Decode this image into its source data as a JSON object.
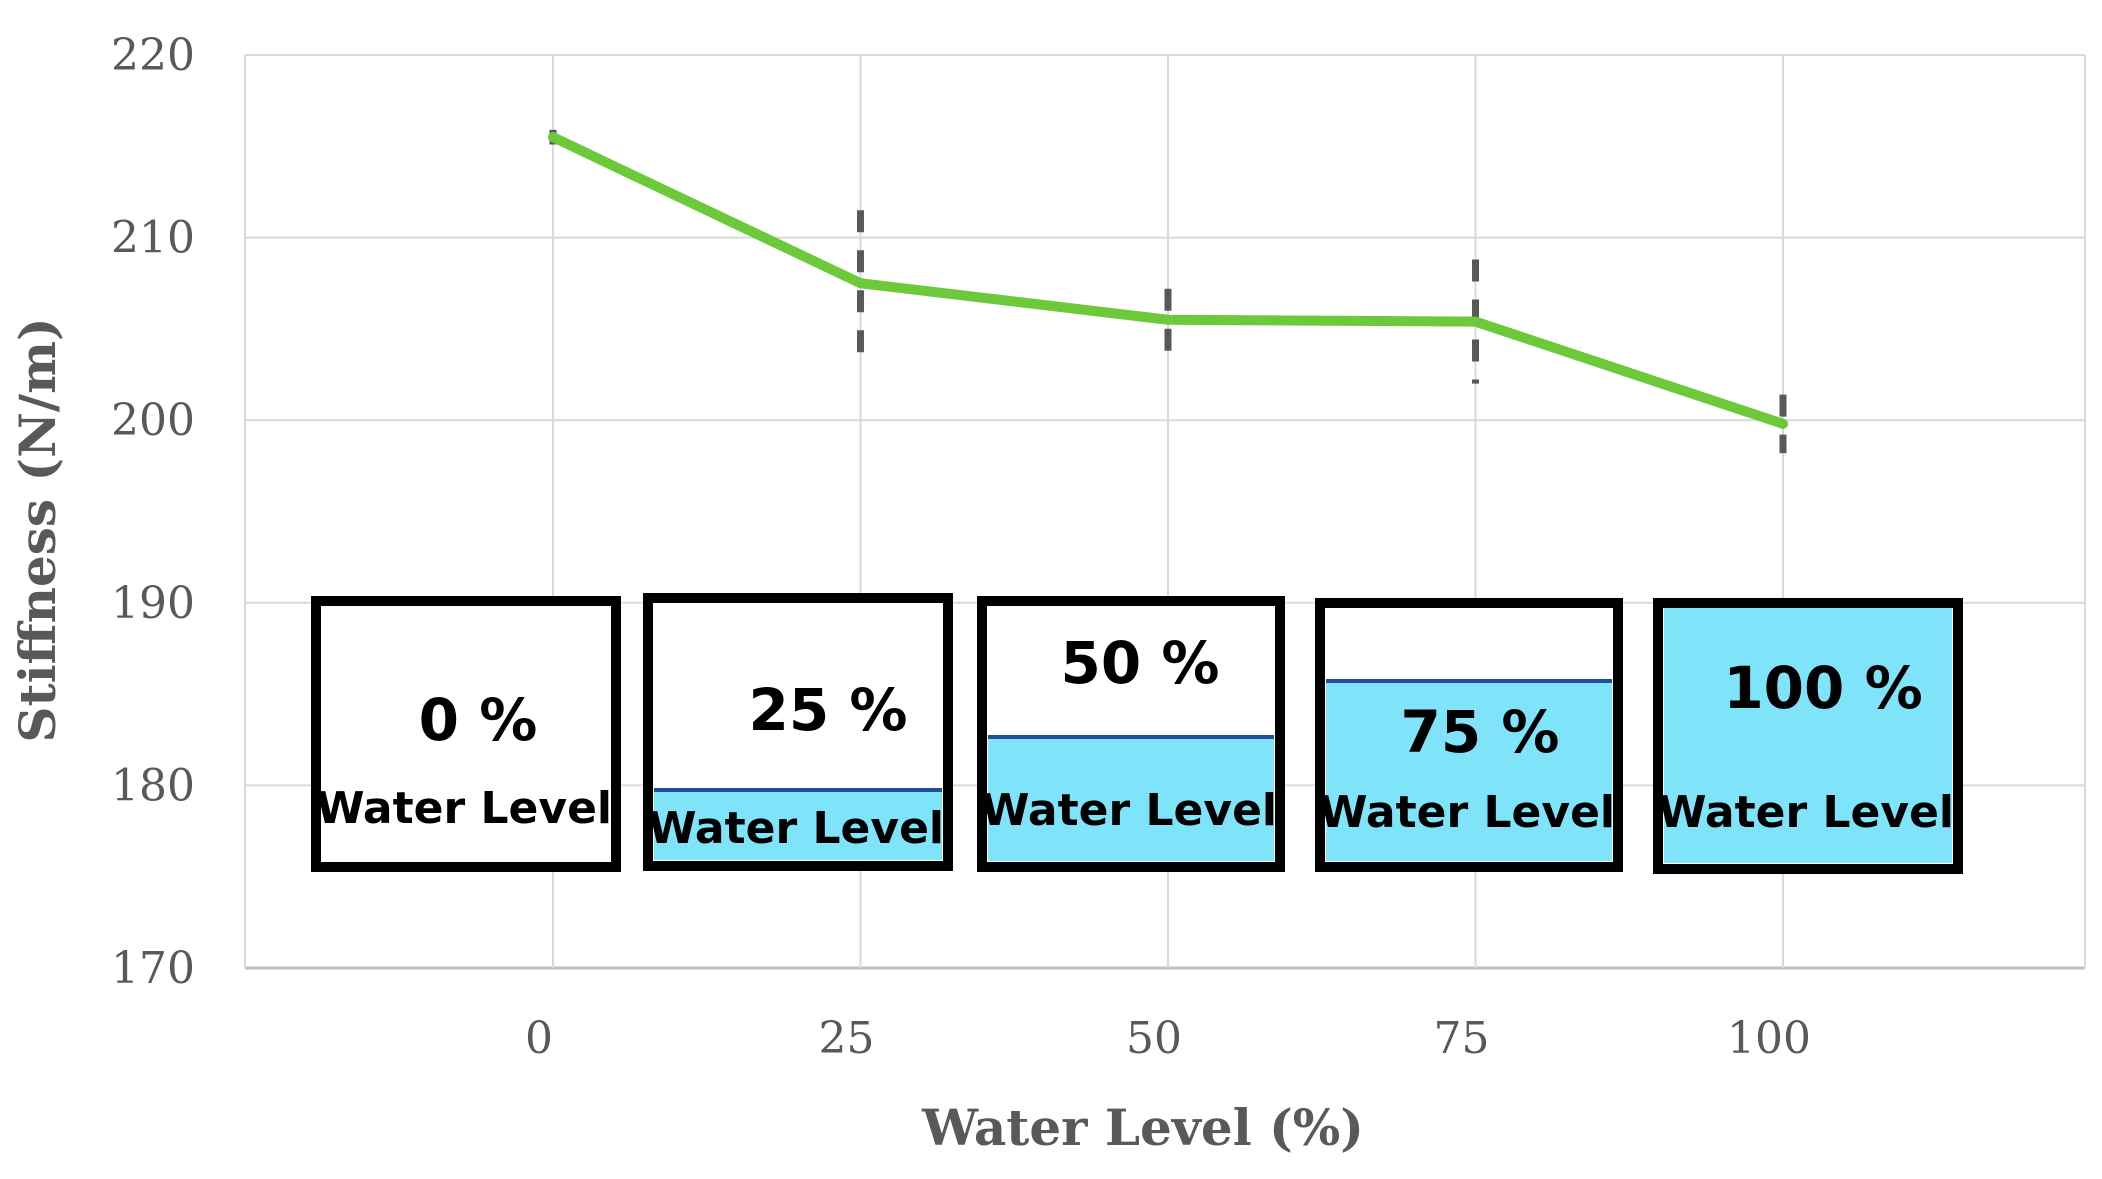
{
  "chart_data": {
    "type": "line",
    "title": "",
    "xlabel": "Water Level (%)",
    "ylabel": "Stiffness (N/m)",
    "x": [
      0,
      25,
      50,
      75,
      100
    ],
    "x_tick_labels": [
      "0",
      "25",
      "50",
      "75",
      "100"
    ],
    "ylim": [
      170,
      220
    ],
    "y_ticks": [
      170,
      180,
      190,
      200,
      210,
      220
    ],
    "grid": true,
    "series": [
      {
        "values": [
          215.5,
          207.5,
          205.5,
          205.4,
          199.8
        ],
        "error": [
          0.4,
          4.0,
          1.7,
          3.4,
          1.6
        ],
        "color": "#6cc93a"
      }
    ],
    "error_bar_color": "#595959",
    "annotations": [
      {
        "pct_text": "0 %",
        "label": "Water Level",
        "fill_fraction": 0.0
      },
      {
        "pct_text": "25 %",
        "label": "Water Level",
        "fill_fraction": 0.25
      },
      {
        "pct_text": "50 %",
        "label": "Water Level",
        "fill_fraction": 0.5
      },
      {
        "pct_text": "75 %",
        "label": "Water Level",
        "fill_fraction": 0.75
      },
      {
        "pct_text": "100 %",
        "label": "Water Level",
        "fill_fraction": 1.0
      }
    ],
    "water_color": "#7fe3fa",
    "water_line_color": "#1f4e9a"
  }
}
